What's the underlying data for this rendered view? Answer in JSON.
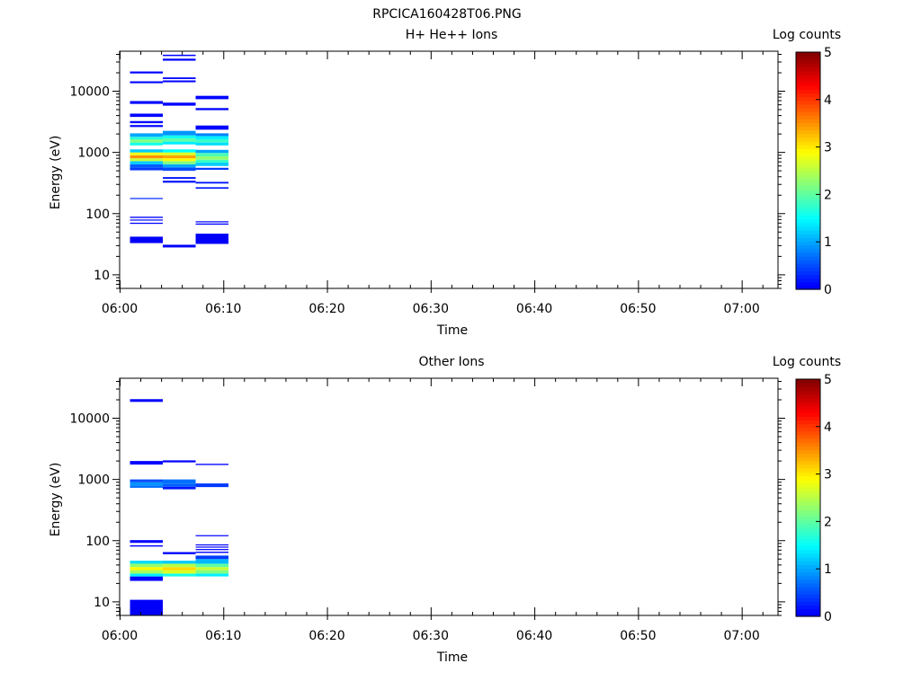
{
  "figure_title": "RPCICA160428T06.PNG",
  "colors": {
    "axis": "#000000",
    "background": "#ffffff"
  },
  "chart_data": [
    {
      "type": "heatmap",
      "title": "H+ He++ Ions",
      "xlabel": "Time",
      "ylabel": "Energy (eV)",
      "x_scale": "time",
      "y_scale": "log",
      "xlim": [
        "06:00",
        "07:03:30"
      ],
      "ylim": [
        6,
        45000
      ],
      "x_ticks": [
        "06:00",
        "06:10",
        "06:20",
        "06:30",
        "06:40",
        "06:50",
        "07:00"
      ],
      "y_ticks": [
        10,
        100,
        1000,
        10000
      ],
      "y_tick_labels": [
        "10",
        "100",
        "1000",
        "10000"
      ],
      "colorbar": {
        "label": "Log counts",
        "min": 0,
        "max": 5,
        "ticks": [
          "0",
          "1",
          "2",
          "3",
          "4",
          "5"
        ],
        "colormap": "jet"
      },
      "cells": [
        {
          "t0": "06:01",
          "t1": "06:04:10",
          "e0": 33,
          "e1": 42,
          "v": 0.05
        },
        {
          "t0": "06:01",
          "t1": "06:04:10",
          "e0": 68,
          "e1": 71,
          "v": 0.1
        },
        {
          "t0": "06:01",
          "t1": "06:04:10",
          "e0": 77,
          "e1": 80,
          "v": 0.1
        },
        {
          "t0": "06:01",
          "t1": "06:04:10",
          "e0": 85,
          "e1": 89,
          "v": 0.1
        },
        {
          "t0": "06:01",
          "t1": "06:04:10",
          "e0": 176,
          "e1": 180,
          "v": 0.3
        },
        {
          "t0": "06:01",
          "t1": "06:04:10",
          "e0": 510,
          "e1": 570,
          "v": 0.4
        },
        {
          "t0": "06:01",
          "t1": "06:04:10",
          "e0": 570,
          "e1": 640,
          "v": 0.6
        },
        {
          "t0": "06:01",
          "t1": "06:04:10",
          "e0": 640,
          "e1": 720,
          "v": 1.2
        },
        {
          "t0": "06:01",
          "t1": "06:04:10",
          "e0": 720,
          "e1": 800,
          "v": 2.6
        },
        {
          "t0": "06:01",
          "t1": "06:04:10",
          "e0": 800,
          "e1": 900,
          "v": 3.5
        },
        {
          "t0": "06:01",
          "t1": "06:04:10",
          "e0": 900,
          "e1": 1000,
          "v": 2.8
        },
        {
          "t0": "06:01",
          "t1": "06:04:10",
          "e0": 1000,
          "e1": 1120,
          "v": 1.2
        },
        {
          "t0": "06:01",
          "t1": "06:04:10",
          "e0": 1300,
          "e1": 1450,
          "v": 1.6
        },
        {
          "t0": "06:01",
          "t1": "06:04:10",
          "e0": 1450,
          "e1": 1620,
          "v": 2.2
        },
        {
          "t0": "06:01",
          "t1": "06:04:10",
          "e0": 1620,
          "e1": 1800,
          "v": 1.7
        },
        {
          "t0": "06:01",
          "t1": "06:04:10",
          "e0": 1800,
          "e1": 2050,
          "v": 1.0
        },
        {
          "t0": "06:01",
          "t1": "06:04:10",
          "e0": 2600,
          "e1": 2800,
          "v": 0.1
        },
        {
          "t0": "06:01",
          "t1": "06:04:10",
          "e0": 3000,
          "e1": 3250,
          "v": 0.1
        },
        {
          "t0": "06:01",
          "t1": "06:04:10",
          "e0": 3800,
          "e1": 4300,
          "v": 0.1
        },
        {
          "t0": "06:01",
          "t1": "06:04:10",
          "e0": 6200,
          "e1": 6900,
          "v": 0.1
        },
        {
          "t0": "06:01",
          "t1": "06:04:10",
          "e0": 13500,
          "e1": 14500,
          "v": 0.1
        },
        {
          "t0": "06:01",
          "t1": "06:04:10",
          "e0": 19500,
          "e1": 21000,
          "v": 0.1
        },
        {
          "t0": "06:04:10",
          "t1": "06:07:20",
          "e0": 28,
          "e1": 31,
          "v": 0.05
        },
        {
          "t0": "06:04:10",
          "t1": "06:07:20",
          "e0": 320,
          "e1": 345,
          "v": 0.2
        },
        {
          "t0": "06:04:10",
          "t1": "06:07:20",
          "e0": 370,
          "e1": 395,
          "v": 0.2
        },
        {
          "t0": "06:04:10",
          "t1": "06:07:20",
          "e0": 500,
          "e1": 570,
          "v": 0.5
        },
        {
          "t0": "06:04:10",
          "t1": "06:07:20",
          "e0": 570,
          "e1": 640,
          "v": 1.0
        },
        {
          "t0": "06:04:10",
          "t1": "06:07:20",
          "e0": 640,
          "e1": 720,
          "v": 2.2
        },
        {
          "t0": "06:04:10",
          "t1": "06:07:20",
          "e0": 720,
          "e1": 800,
          "v": 2.9
        },
        {
          "t0": "06:04:10",
          "t1": "06:07:20",
          "e0": 800,
          "e1": 900,
          "v": 3.4
        },
        {
          "t0": "06:04:10",
          "t1": "06:07:20",
          "e0": 900,
          "e1": 1000,
          "v": 2.7
        },
        {
          "t0": "06:04:10",
          "t1": "06:07:20",
          "e0": 1000,
          "e1": 1120,
          "v": 1.5
        },
        {
          "t0": "06:04:10",
          "t1": "06:07:20",
          "e0": 1350,
          "e1": 1500,
          "v": 1.4
        },
        {
          "t0": "06:04:10",
          "t1": "06:07:20",
          "e0": 1500,
          "e1": 1680,
          "v": 2.0
        },
        {
          "t0": "06:04:10",
          "t1": "06:07:20",
          "e0": 1680,
          "e1": 1900,
          "v": 1.6
        },
        {
          "t0": "06:04:10",
          "t1": "06:07:20",
          "e0": 1900,
          "e1": 2250,
          "v": 0.9
        },
        {
          "t0": "06:04:10",
          "t1": "06:07:20",
          "e0": 5800,
          "e1": 6500,
          "v": 0.1
        },
        {
          "t0": "06:04:10",
          "t1": "06:07:20",
          "e0": 14000,
          "e1": 15000,
          "v": 0.1
        },
        {
          "t0": "06:04:10",
          "t1": "06:07:20",
          "e0": 15800,
          "e1": 16800,
          "v": 0.1
        },
        {
          "t0": "06:04:10",
          "t1": "06:07:20",
          "e0": 31500,
          "e1": 34000,
          "v": 0.1
        },
        {
          "t0": "06:04:10",
          "t1": "06:07:20",
          "e0": 37500,
          "e1": 39500,
          "v": 0.1
        },
        {
          "t0": "06:07:20",
          "t1": "06:10:30",
          "e0": 32,
          "e1": 47,
          "v": 0.05
        },
        {
          "t0": "06:07:20",
          "t1": "06:10:30",
          "e0": 66,
          "e1": 69,
          "v": 0.1
        },
        {
          "t0": "06:07:20",
          "t1": "06:10:30",
          "e0": 72,
          "e1": 75,
          "v": 0.1
        },
        {
          "t0": "06:07:20",
          "t1": "06:10:30",
          "e0": 255,
          "e1": 270,
          "v": 0.2
        },
        {
          "t0": "06:07:20",
          "t1": "06:10:30",
          "e0": 310,
          "e1": 330,
          "v": 0.2
        },
        {
          "t0": "06:07:20",
          "t1": "06:10:30",
          "e0": 520,
          "e1": 560,
          "v": 0.4
        },
        {
          "t0": "06:07:20",
          "t1": "06:10:30",
          "e0": 600,
          "e1": 680,
          "v": 1.2
        },
        {
          "t0": "06:07:20",
          "t1": "06:10:30",
          "e0": 680,
          "e1": 760,
          "v": 1.8
        },
        {
          "t0": "06:07:20",
          "t1": "06:10:30",
          "e0": 760,
          "e1": 860,
          "v": 2.3
        },
        {
          "t0": "06:07:20",
          "t1": "06:10:30",
          "e0": 860,
          "e1": 980,
          "v": 1.9
        },
        {
          "t0": "06:07:20",
          "t1": "06:10:30",
          "e0": 980,
          "e1": 1100,
          "v": 1.0
        },
        {
          "t0": "06:07:20",
          "t1": "06:10:30",
          "e0": 1300,
          "e1": 1450,
          "v": 1.3
        },
        {
          "t0": "06:07:20",
          "t1": "06:10:30",
          "e0": 1450,
          "e1": 1620,
          "v": 1.8
        },
        {
          "t0": "06:07:20",
          "t1": "06:10:30",
          "e0": 1620,
          "e1": 1850,
          "v": 1.4
        },
        {
          "t0": "06:07:20",
          "t1": "06:10:30",
          "e0": 1850,
          "e1": 2050,
          "v": 0.8
        },
        {
          "t0": "06:07:20",
          "t1": "06:10:30",
          "e0": 2350,
          "e1": 2750,
          "v": 0.1
        },
        {
          "t0": "06:07:20",
          "t1": "06:10:30",
          "e0": 4900,
          "e1": 5300,
          "v": 0.1
        },
        {
          "t0": "06:07:20",
          "t1": "06:10:30",
          "e0": 7400,
          "e1": 8400,
          "v": 0.1
        }
      ]
    },
    {
      "type": "heatmap",
      "title": "Other Ions",
      "xlabel": "Time",
      "ylabel": "Energy (eV)",
      "x_scale": "time",
      "y_scale": "log",
      "xlim": [
        "06:00",
        "07:03:30"
      ],
      "ylim": [
        6,
        45000
      ],
      "x_ticks": [
        "06:00",
        "06:10",
        "06:20",
        "06:30",
        "06:40",
        "06:50",
        "07:00"
      ],
      "y_ticks": [
        10,
        100,
        1000,
        10000
      ],
      "y_tick_labels": [
        "10",
        "100",
        "1000",
        "10000"
      ],
      "colorbar": {
        "label": "Log counts",
        "min": 0,
        "max": 5,
        "ticks": [
          "0",
          "1",
          "2",
          "3",
          "4",
          "5"
        ],
        "colormap": "jet"
      },
      "cells": [
        {
          "t0": "06:01",
          "t1": "06:04:10",
          "e0": 6.1,
          "e1": 10.8,
          "v": 0.05
        },
        {
          "t0": "06:01",
          "t1": "06:04:10",
          "e0": 22,
          "e1": 26,
          "v": 0.1
        },
        {
          "t0": "06:01",
          "t1": "06:04:10",
          "e0": 26,
          "e1": 29,
          "v": 1.4
        },
        {
          "t0": "06:01",
          "t1": "06:04:10",
          "e0": 29,
          "e1": 33,
          "v": 2.4
        },
        {
          "t0": "06:01",
          "t1": "06:04:10",
          "e0": 33,
          "e1": 37,
          "v": 2.9
        },
        {
          "t0": "06:01",
          "t1": "06:04:10",
          "e0": 37,
          "e1": 42,
          "v": 2.3
        },
        {
          "t0": "06:01",
          "t1": "06:04:10",
          "e0": 42,
          "e1": 47,
          "v": 1.3
        },
        {
          "t0": "06:01",
          "t1": "06:04:10",
          "e0": 80,
          "e1": 84,
          "v": 0.1
        },
        {
          "t0": "06:01",
          "t1": "06:04:10",
          "e0": 92,
          "e1": 102,
          "v": 0.1
        },
        {
          "t0": "06:01",
          "t1": "06:04:10",
          "e0": 730,
          "e1": 800,
          "v": 0.7
        },
        {
          "t0": "06:01",
          "t1": "06:04:10",
          "e0": 800,
          "e1": 900,
          "v": 0.9
        },
        {
          "t0": "06:01",
          "t1": "06:04:10",
          "e0": 900,
          "e1": 1000,
          "v": 0.5
        },
        {
          "t0": "06:01",
          "t1": "06:04:10",
          "e0": 1750,
          "e1": 2000,
          "v": 0.1
        },
        {
          "t0": "06:01",
          "t1": "06:04:10",
          "e0": 18500,
          "e1": 20500,
          "v": 0.1
        },
        {
          "t0": "06:04:10",
          "t1": "06:07:20",
          "e0": 26,
          "e1": 29,
          "v": 1.6
        },
        {
          "t0": "06:04:10",
          "t1": "06:07:20",
          "e0": 29,
          "e1": 33,
          "v": 2.7
        },
        {
          "t0": "06:04:10",
          "t1": "06:07:20",
          "e0": 33,
          "e1": 37,
          "v": 3.1
        },
        {
          "t0": "06:04:10",
          "t1": "06:07:20",
          "e0": 37,
          "e1": 42,
          "v": 2.5
        },
        {
          "t0": "06:04:10",
          "t1": "06:07:20",
          "e0": 42,
          "e1": 47,
          "v": 1.2
        },
        {
          "t0": "06:04:10",
          "t1": "06:07:20",
          "e0": 60,
          "e1": 65,
          "v": 0.1
        },
        {
          "t0": "06:04:10",
          "t1": "06:07:20",
          "e0": 690,
          "e1": 760,
          "v": 0.2
        },
        {
          "t0": "06:04:10",
          "t1": "06:07:20",
          "e0": 760,
          "e1": 840,
          "v": 0.6
        },
        {
          "t0": "06:04:10",
          "t1": "06:07:20",
          "e0": 840,
          "e1": 1000,
          "v": 0.7
        },
        {
          "t0": "06:04:10",
          "t1": "06:07:20",
          "e0": 1900,
          "e1": 2050,
          "v": 0.1
        },
        {
          "t0": "06:07:20",
          "t1": "06:10:30",
          "e0": 26,
          "e1": 29,
          "v": 1.4
        },
        {
          "t0": "06:07:20",
          "t1": "06:10:30",
          "e0": 29,
          "e1": 33,
          "v": 2.2
        },
        {
          "t0": "06:07:20",
          "t1": "06:10:30",
          "e0": 33,
          "e1": 37,
          "v": 2.6
        },
        {
          "t0": "06:07:20",
          "t1": "06:10:30",
          "e0": 37,
          "e1": 42,
          "v": 2.0
        },
        {
          "t0": "06:07:20",
          "t1": "06:10:30",
          "e0": 42,
          "e1": 50,
          "v": 1.1
        },
        {
          "t0": "06:07:20",
          "t1": "06:10:30",
          "e0": 50,
          "e1": 57,
          "v": 0.4
        },
        {
          "t0": "06:07:20",
          "t1": "06:10:30",
          "e0": 63,
          "e1": 66,
          "v": 0.1
        },
        {
          "t0": "06:07:20",
          "t1": "06:10:30",
          "e0": 70,
          "e1": 73,
          "v": 0.1
        },
        {
          "t0": "06:07:20",
          "t1": "06:10:30",
          "e0": 77,
          "e1": 80,
          "v": 0.1
        },
        {
          "t0": "06:07:20",
          "t1": "06:10:30",
          "e0": 84,
          "e1": 87,
          "v": 0.1
        },
        {
          "t0": "06:07:20",
          "t1": "06:10:30",
          "e0": 118,
          "e1": 123,
          "v": 0.1
        },
        {
          "t0": "06:07:20",
          "t1": "06:10:30",
          "e0": 750,
          "e1": 860,
          "v": 0.4
        },
        {
          "t0": "06:07:20",
          "t1": "06:10:30",
          "e0": 1720,
          "e1": 1800,
          "v": 0.1
        }
      ]
    }
  ]
}
